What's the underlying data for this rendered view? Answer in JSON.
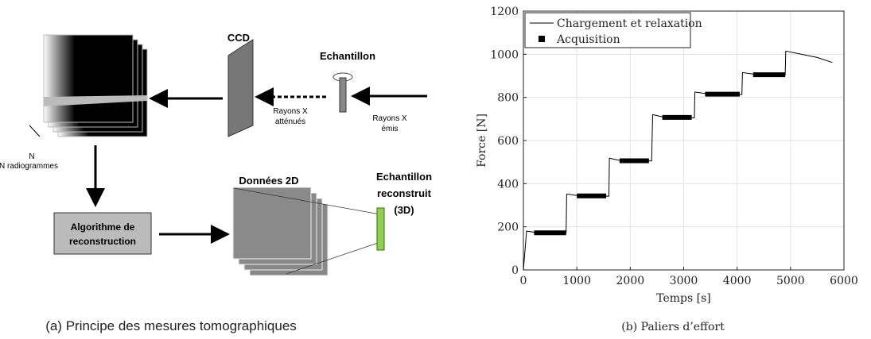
{
  "diagram": {
    "nodes": [
      {
        "label": "CCD"
      },
      {
        "label": "Echantillon"
      },
      {
        "label": "Rayons X atténués"
      },
      {
        "label": "Rayons X émis"
      },
      {
        "label": "N radiogrammes"
      },
      {
        "label": "Algorithme de reconstruction"
      },
      {
        "label": "Données 2D"
      },
      {
        "label": "Echantillon reconstruit (3D)"
      }
    ],
    "caption": "(a) Principe des mesures tomographiques"
  },
  "chart_data": {
    "type": "line",
    "caption": "(b) Paliers d’effort",
    "x_label": "Temps [s]",
    "y_label": "Force [N]",
    "xlim": [
      0,
      6000
    ],
    "xticks": [
      0,
      1000,
      2000,
      3000,
      4000,
      5000,
      6000
    ],
    "ylim": [
      0,
      1200
    ],
    "yticks": [
      0,
      200,
      400,
      600,
      800,
      1000,
      1200
    ],
    "grid": true,
    "legend": "upper-left",
    "series": [
      {
        "name": "Chargement et relaxation",
        "color": "#000000",
        "x": [
          0,
          60,
          200,
          800,
          810,
          1000,
          1600,
          1610,
          1800,
          2400,
          2420,
          2600,
          3200,
          3210,
          3400,
          4090,
          4100,
          4300,
          4900,
          4910,
          5200,
          5500,
          5780
        ],
        "values": [
          0,
          180,
          175,
          172,
          352,
          345,
          342,
          518,
          508,
          505,
          720,
          710,
          705,
          825,
          818,
          813,
          915,
          908,
          903,
          1015,
          1000,
          985,
          962
        ]
      },
      {
        "name": "Acquisition",
        "color": "#000000",
        "x": [
          200,
          800,
          null,
          1000,
          1550,
          null,
          1800,
          2350,
          null,
          2600,
          3150,
          null,
          3400,
          4050,
          null,
          4300,
          4900
        ],
        "values": [
          172,
          172,
          null,
          343,
          343,
          null,
          506,
          506,
          null,
          707,
          707,
          null,
          815,
          815,
          null,
          905,
          905
        ]
      }
    ]
  }
}
